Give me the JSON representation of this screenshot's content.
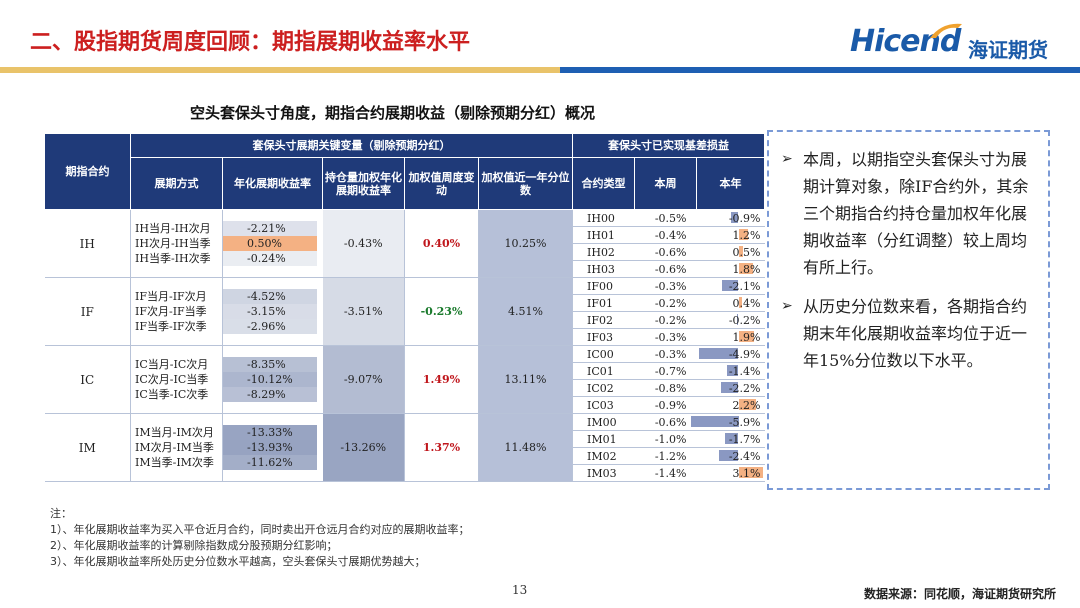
{
  "header": {
    "title": "二、股指期货周度回顾：期指展期收益率水平"
  },
  "logo": {
    "en": "Hicend",
    "cn": "海证期货"
  },
  "table_title": "空头套保头寸角度，期指合约展期收益（剔除预期分红）概况",
  "table": {
    "group_headers": {
      "roll": "套保头寸展期关键变量（剔除预期分红）",
      "basis": "套保头寸已实现基差损益"
    },
    "columns": {
      "contract": "期指合约",
      "mode": "展期方式",
      "annualized": "年化展期收益率",
      "weighted": "持仓量加权年化展期收益率",
      "weekly_change": "加权值周度变动",
      "percentile": "加权值近一年分位数",
      "basis_type": "合约类型",
      "this_week": "本周",
      "this_year": "本年"
    },
    "colors": {
      "negative_bar": "#8a98c2",
      "positive_bar": "#f4b183",
      "header_bg": "#1f3a79"
    },
    "groups": [
      {
        "contract": "IH",
        "rolls": [
          {
            "mode": "IH当月-IH次月",
            "annualized": "-2.21%",
            "level": 0.17
          },
          {
            "mode": "IH次月-IH当季",
            "annualized": "0.50%",
            "level": 0
          },
          {
            "mode": "IH当季-IH次季",
            "annualized": "-0.24%",
            "level": 0.02
          }
        ],
        "weighted": "-0.43%",
        "weighted_level": 0.03,
        "weekly_change": "0.40%",
        "change_sign": "up",
        "percentile": "10.25%",
        "basis": [
          {
            "code": "IH00",
            "week": "-0.5%",
            "year": "-0.9%",
            "year_value": -0.9
          },
          {
            "code": "IH01",
            "week": "-0.4%",
            "year": "1.2%",
            "year_value": 1.2
          },
          {
            "code": "IH02",
            "week": "-0.6%",
            "year": "0.5%",
            "year_value": 0.5
          },
          {
            "code": "IH03",
            "week": "-0.6%",
            "year": "1.8%",
            "year_value": 1.8
          }
        ]
      },
      {
        "contract": "IF",
        "rolls": [
          {
            "mode": "IF当月-IF次月",
            "annualized": "-4.52%",
            "level": 0.34
          },
          {
            "mode": "IF次月-IF当季",
            "annualized": "-3.15%",
            "level": 0.24
          },
          {
            "mode": "IF当季-IF次季",
            "annualized": "-2.96%",
            "level": 0.22
          }
        ],
        "weighted": "-3.51%",
        "weighted_level": 0.26,
        "weekly_change": "-0.23%",
        "change_sign": "down",
        "percentile": "4.51%",
        "basis": [
          {
            "code": "IF00",
            "week": "-0.3%",
            "year": "-2.1%",
            "year_value": -2.1
          },
          {
            "code": "IF01",
            "week": "-0.2%",
            "year": "0.4%",
            "year_value": 0.4
          },
          {
            "code": "IF02",
            "week": "-0.2%",
            "year": "-0.2%",
            "year_value": -0.2
          },
          {
            "code": "IF03",
            "week": "-0.3%",
            "year": "1.9%",
            "year_value": 1.9
          }
        ]
      },
      {
        "contract": "IC",
        "rolls": [
          {
            "mode": "IC当月-IC次月",
            "annualized": "-8.35%",
            "level": 0.62
          },
          {
            "mode": "IC次月-IC当季",
            "annualized": "-10.12%",
            "level": 0.75
          },
          {
            "mode": "IC当季-IC次季",
            "annualized": "-8.29%",
            "level": 0.61
          }
        ],
        "weighted": "-9.07%",
        "weighted_level": 0.67,
        "weekly_change": "1.49%",
        "change_sign": "up",
        "percentile": "13.11%",
        "basis": [
          {
            "code": "IC00",
            "week": "-0.3%",
            "year": "-4.9%",
            "year_value": -4.9
          },
          {
            "code": "IC01",
            "week": "-0.7%",
            "year": "-1.4%",
            "year_value": -1.4
          },
          {
            "code": "IC02",
            "week": "-0.8%",
            "year": "-2.2%",
            "year_value": -2.2
          },
          {
            "code": "IC03",
            "week": "-0.9%",
            "year": "2.2%",
            "year_value": 2.2
          }
        ]
      },
      {
        "contract": "IM",
        "rolls": [
          {
            "mode": "IM当月-IM次月",
            "annualized": "-13.33%",
            "level": 0.99
          },
          {
            "mode": "IM次月-IM当季",
            "annualized": "-13.93%",
            "level": 1.0
          },
          {
            "mode": "IM当季-IM次季",
            "annualized": "-11.62%",
            "level": 0.86
          }
        ],
        "weighted": "-13.26%",
        "weighted_level": 0.98,
        "weekly_change": "1.37%",
        "change_sign": "up",
        "percentile": "11.48%",
        "basis": [
          {
            "code": "IM00",
            "week": "-0.6%",
            "year": "-5.9%",
            "year_value": -5.9
          },
          {
            "code": "IM01",
            "week": "-1.0%",
            "year": "-1.7%",
            "year_value": -1.7
          },
          {
            "code": "IM02",
            "week": "-1.2%",
            "year": "-2.4%",
            "year_value": -2.4
          },
          {
            "code": "IM03",
            "week": "-1.4%",
            "year": "3.1%",
            "year_value": 3.1
          }
        ]
      }
    ]
  },
  "callout": {
    "bullets": [
      "本周，以期指空头套保头寸为展期计算对象，除IF合约外，其余三个期指合约持仓量加权年化展期收益率（分红调整）较上周均有所上行。",
      "从历史分位数来看，各期指合约期末年化展期收益率均位于近一年15%分位数以下水平。"
    ]
  },
  "notes": {
    "title": "注：",
    "items": [
      "1）、年化展期收益率为买入平仓近月合约，同时卖出开仓远月合约对应的展期收益率；",
      "2）、年化展期收益率的计算剔除指数成分股预期分红影响；",
      "3）、年化展期收益率所处历史分位数水平越高，空头套保头寸展期优势越大；"
    ]
  },
  "page_number": "13",
  "source": "数据来源：同花顺，海证期货研究所"
}
